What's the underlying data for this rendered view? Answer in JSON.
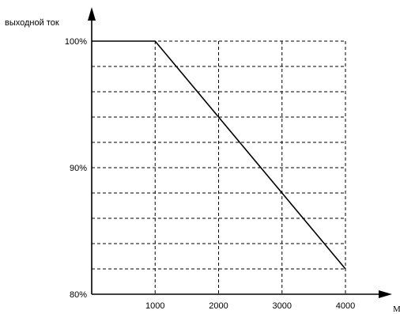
{
  "chart_data": {
    "type": "line",
    "ylabel": "выходной ток",
    "xlabel": "М",
    "x_ticks": [
      1000,
      2000,
      3000,
      4000
    ],
    "x_tick_labels": [
      "1000",
      "2000",
      "3000",
      "4000"
    ],
    "y_tick_labels": [
      {
        "value": 100,
        "label": "100%"
      },
      {
        "value": 90,
        "label": "90%"
      },
      {
        "value": 80,
        "label": "80%"
      }
    ],
    "xlim": [
      0,
      4000
    ],
    "ylim": [
      80,
      100
    ],
    "grid": true,
    "grid_style": "dashed",
    "series": [
      {
        "x": [
          0,
          1000,
          4000
        ],
        "y": [
          100,
          100,
          82
        ]
      }
    ],
    "colors": {
      "line": "#000000",
      "grid": "#000000",
      "axis": "#000000"
    }
  }
}
